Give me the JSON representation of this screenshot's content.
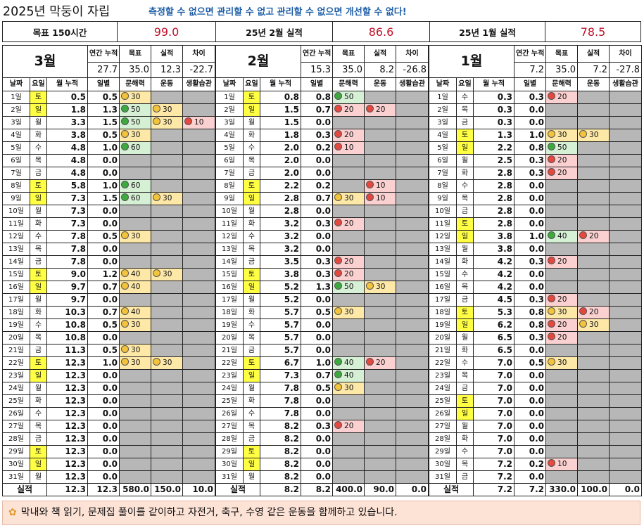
{
  "title": "2025년 막둥이 자립",
  "slogan": "측정할 수 없으면 관리할 수 없고 관리할 수 없으면 개선할 수 없다!",
  "summary": {
    "goal_label": "목표 150시간",
    "goal_value": "99.0",
    "feb_label": "25년 2월 실적",
    "feb_value": "86.6",
    "jan_label": "25년 1월 실적",
    "jan_value": "78.5"
  },
  "headers": {
    "annual": "연간 누적",
    "goal": "목표",
    "actual": "실적",
    "diff": "차이",
    "date": "날짜",
    "weekday": "요일",
    "month_cum": "월 누적",
    "daily": "일별",
    "literacy": "문해력",
    "exercise": "운동",
    "habit": "생활습관",
    "total_label": "실적"
  },
  "months": [
    {
      "name": "3월",
      "annual": "27.7",
      "goal": "35.0",
      "actual": "12.3",
      "diff": "-22.7",
      "days": [
        [
          "1일",
          "토",
          "0.5",
          "0.5",
          "30",
          "",
          ""
        ],
        [
          "2일",
          "일",
          "1.8",
          "1.3",
          "50",
          "30",
          ""
        ],
        [
          "3일",
          "월",
          "3.3",
          "1.5",
          "50",
          "30",
          "10"
        ],
        [
          "4일",
          "화",
          "3.8",
          "0.5",
          "30",
          "",
          ""
        ],
        [
          "5일",
          "수",
          "4.8",
          "1.0",
          "60",
          "",
          ""
        ],
        [
          "6일",
          "목",
          "4.8",
          "0.0",
          "",
          "",
          ""
        ],
        [
          "7일",
          "금",
          "4.8",
          "0.0",
          "",
          "",
          ""
        ],
        [
          "8일",
          "토",
          "5.8",
          "1.0",
          "60",
          "",
          ""
        ],
        [
          "9일",
          "일",
          "7.3",
          "1.5",
          "60",
          "30",
          ""
        ],
        [
          "10일",
          "월",
          "7.3",
          "0.0",
          "",
          "",
          ""
        ],
        [
          "11일",
          "화",
          "7.3",
          "0.0",
          "",
          "",
          ""
        ],
        [
          "12일",
          "수",
          "7.8",
          "0.5",
          "30",
          "",
          ""
        ],
        [
          "13일",
          "목",
          "7.8",
          "0.0",
          "",
          "",
          ""
        ],
        [
          "14일",
          "금",
          "7.8",
          "0.0",
          "",
          "",
          ""
        ],
        [
          "15일",
          "토",
          "9.0",
          "1.2",
          "40",
          "30",
          ""
        ],
        [
          "16일",
          "일",
          "9.7",
          "0.7",
          "40",
          "",
          ""
        ],
        [
          "17일",
          "월",
          "9.7",
          "0.0",
          "",
          "",
          ""
        ],
        [
          "18일",
          "화",
          "10.3",
          "0.7",
          "40",
          "",
          ""
        ],
        [
          "19일",
          "수",
          "10.8",
          "0.5",
          "30",
          "",
          ""
        ],
        [
          "20일",
          "목",
          "10.8",
          "0.0",
          "",
          "",
          ""
        ],
        [
          "21일",
          "금",
          "11.3",
          "0.5",
          "30",
          "",
          ""
        ],
        [
          "22일",
          "토",
          "12.3",
          "1.0",
          "30",
          "30",
          ""
        ],
        [
          "23일",
          "일",
          "12.3",
          "0.0",
          "",
          "",
          ""
        ],
        [
          "24일",
          "월",
          "12.3",
          "0.0",
          "",
          "",
          ""
        ],
        [
          "25일",
          "화",
          "12.3",
          "0.0",
          "",
          "",
          ""
        ],
        [
          "26일",
          "수",
          "12.3",
          "0.0",
          "",
          "",
          ""
        ],
        [
          "27일",
          "목",
          "12.3",
          "0.0",
          "",
          "",
          ""
        ],
        [
          "28일",
          "금",
          "12.3",
          "0.0",
          "",
          "",
          ""
        ],
        [
          "29일",
          "토",
          "12.3",
          "0.0",
          "",
          "",
          ""
        ],
        [
          "30일",
          "일",
          "12.3",
          "0.0",
          "",
          "",
          ""
        ],
        [
          "31일",
          "월",
          "12.3",
          "0.0",
          "",
          "",
          ""
        ]
      ],
      "total": {
        "cum": "12.3",
        "daily": "12.3",
        "literacy": "580.0",
        "exercise": "150.0",
        "habit": "10.0"
      },
      "colors": [
        [
          "y",
          "",
          ""
        ],
        [
          "g",
          "y",
          ""
        ],
        [
          "g",
          "y",
          "r"
        ],
        [
          "y",
          "",
          ""
        ],
        [
          "g",
          "",
          ""
        ],
        [
          "",
          "",
          ""
        ],
        [
          "",
          "",
          ""
        ],
        [
          "g",
          "",
          ""
        ],
        [
          "g",
          "y",
          ""
        ],
        [
          "",
          "",
          ""
        ],
        [
          "",
          "",
          ""
        ],
        [
          "y",
          "",
          ""
        ],
        [
          "",
          "",
          ""
        ],
        [
          "",
          "",
          ""
        ],
        [
          "y",
          "y",
          ""
        ],
        [
          "y",
          "",
          ""
        ],
        [
          "",
          "",
          ""
        ],
        [
          "y",
          "",
          ""
        ],
        [
          "y",
          "",
          ""
        ],
        [
          "",
          "",
          ""
        ],
        [
          "y",
          "",
          ""
        ],
        [
          "y",
          "y",
          ""
        ],
        [
          "",
          "",
          ""
        ],
        [
          "",
          "",
          ""
        ],
        [
          "",
          "",
          ""
        ],
        [
          "",
          "",
          ""
        ],
        [
          "",
          "",
          ""
        ],
        [
          "",
          "",
          ""
        ],
        [
          "",
          "",
          ""
        ],
        [
          "",
          "",
          ""
        ],
        [
          "",
          "",
          ""
        ]
      ]
    },
    {
      "name": "2월",
      "annual": "15.3",
      "goal": "35.0",
      "actual": "8.2",
      "diff": "-26.8",
      "days": [
        [
          "1일",
          "토",
          "0.8",
          "0.8",
          "50",
          "",
          ""
        ],
        [
          "2일",
          "일",
          "1.5",
          "0.7",
          "20",
          "20",
          ""
        ],
        [
          "3일",
          "월",
          "1.5",
          "0.0",
          "",
          "",
          ""
        ],
        [
          "4일",
          "화",
          "1.8",
          "0.3",
          "20",
          "",
          ""
        ],
        [
          "5일",
          "수",
          "2.0",
          "0.2",
          "10",
          "",
          ""
        ],
        [
          "6일",
          "목",
          "2.0",
          "0.0",
          "",
          "",
          ""
        ],
        [
          "7일",
          "금",
          "2.0",
          "0.0",
          "",
          "",
          ""
        ],
        [
          "8일",
          "토",
          "2.2",
          "0.2",
          "",
          "10",
          ""
        ],
        [
          "9일",
          "일",
          "2.8",
          "0.7",
          "30",
          "10",
          ""
        ],
        [
          "10일",
          "월",
          "2.8",
          "0.0",
          "",
          "",
          ""
        ],
        [
          "11일",
          "화",
          "3.2",
          "0.3",
          "20",
          "",
          ""
        ],
        [
          "12일",
          "수",
          "3.2",
          "0.0",
          "",
          "",
          ""
        ],
        [
          "13일",
          "목",
          "3.2",
          "0.0",
          "",
          "",
          ""
        ],
        [
          "14일",
          "금",
          "3.5",
          "0.3",
          "20",
          "",
          ""
        ],
        [
          "15일",
          "토",
          "3.8",
          "0.3",
          "20",
          "",
          ""
        ],
        [
          "16일",
          "일",
          "5.2",
          "1.3",
          "50",
          "30",
          ""
        ],
        [
          "17일",
          "월",
          "5.2",
          "0.0",
          "",
          "",
          ""
        ],
        [
          "18일",
          "화",
          "5.7",
          "0.5",
          "30",
          "",
          ""
        ],
        [
          "19일",
          "수",
          "5.7",
          "0.0",
          "",
          "",
          ""
        ],
        [
          "20일",
          "목",
          "5.7",
          "0.0",
          "",
          "",
          ""
        ],
        [
          "21일",
          "금",
          "5.7",
          "0.0",
          "",
          "",
          ""
        ],
        [
          "22일",
          "토",
          "6.7",
          "1.0",
          "40",
          "20",
          ""
        ],
        [
          "23일",
          "일",
          "7.3",
          "0.7",
          "40",
          "",
          ""
        ],
        [
          "24일",
          "월",
          "7.8",
          "0.5",
          "30",
          "",
          ""
        ],
        [
          "25일",
          "화",
          "7.8",
          "0.0",
          "",
          "",
          ""
        ],
        [
          "26일",
          "수",
          "7.8",
          "0.0",
          "",
          "",
          ""
        ],
        [
          "27일",
          "목",
          "8.2",
          "0.3",
          "20",
          "",
          ""
        ],
        [
          "28일",
          "금",
          "8.2",
          "0.0",
          "",
          "",
          ""
        ],
        [
          "29일",
          "토",
          "8.2",
          "0.0",
          "",
          "",
          ""
        ],
        [
          "30일",
          "일",
          "8.2",
          "0.0",
          "",
          "",
          ""
        ],
        [
          "31일",
          "월",
          "8.2",
          "0.0",
          "",
          "",
          ""
        ]
      ],
      "total": {
        "cum": "8.2",
        "daily": "8.2",
        "literacy": "400.0",
        "exercise": "90.0",
        "habit": "0.0"
      },
      "colors": [
        [
          "g",
          "",
          ""
        ],
        [
          "r",
          "r",
          ""
        ],
        [
          "",
          "",
          ""
        ],
        [
          "r",
          "",
          ""
        ],
        [
          "r",
          "",
          ""
        ],
        [
          "",
          "",
          ""
        ],
        [
          "",
          "",
          ""
        ],
        [
          "",
          "r",
          ""
        ],
        [
          "y",
          "r",
          ""
        ],
        [
          "",
          "",
          ""
        ],
        [
          "r",
          "",
          ""
        ],
        [
          "",
          "",
          ""
        ],
        [
          "",
          "",
          ""
        ],
        [
          "r",
          "",
          ""
        ],
        [
          "r",
          "",
          ""
        ],
        [
          "g",
          "y",
          ""
        ],
        [
          "",
          "",
          ""
        ],
        [
          "y",
          "",
          ""
        ],
        [
          "",
          "",
          ""
        ],
        [
          "",
          "",
          ""
        ],
        [
          "",
          "",
          ""
        ],
        [
          "g",
          "r",
          ""
        ],
        [
          "g",
          "",
          ""
        ],
        [
          "y",
          "",
          ""
        ],
        [
          "",
          "",
          ""
        ],
        [
          "",
          "",
          ""
        ],
        [
          "r",
          "",
          ""
        ],
        [
          "",
          "",
          ""
        ],
        [
          "",
          "",
          ""
        ],
        [
          "",
          "",
          ""
        ],
        [
          "",
          "",
          ""
        ]
      ]
    },
    {
      "name": "1월",
      "annual": "7.2",
      "goal": "35.0",
      "actual": "7.2",
      "diff": "-27.8",
      "days": [
        [
          "1일",
          "수",
          "0.3",
          "0.3",
          "20",
          "",
          ""
        ],
        [
          "2일",
          "목",
          "0.3",
          "0.0",
          "",
          "",
          ""
        ],
        [
          "3일",
          "금",
          "0.3",
          "0.0",
          "",
          "",
          ""
        ],
        [
          "4일",
          "토",
          "1.3",
          "1.0",
          "30",
          "30",
          ""
        ],
        [
          "5일",
          "일",
          "2.2",
          "0.8",
          "50",
          "",
          ""
        ],
        [
          "6일",
          "월",
          "2.5",
          "0.3",
          "20",
          "",
          ""
        ],
        [
          "7일",
          "화",
          "2.8",
          "0.3",
          "20",
          "",
          ""
        ],
        [
          "8일",
          "수",
          "2.8",
          "0.0",
          "",
          "",
          ""
        ],
        [
          "9일",
          "목",
          "2.8",
          "0.0",
          "",
          "",
          ""
        ],
        [
          "10일",
          "금",
          "2.8",
          "0.0",
          "",
          "",
          ""
        ],
        [
          "11일",
          "토",
          "2.8",
          "0.0",
          "",
          "",
          ""
        ],
        [
          "12일",
          "일",
          "3.8",
          "1.0",
          "40",
          "20",
          ""
        ],
        [
          "13일",
          "월",
          "3.8",
          "0.0",
          "",
          "",
          ""
        ],
        [
          "14일",
          "화",
          "4.2",
          "0.3",
          "20",
          "",
          ""
        ],
        [
          "15일",
          "수",
          "4.2",
          "0.0",
          "",
          "",
          ""
        ],
        [
          "16일",
          "목",
          "4.2",
          "0.0",
          "",
          "",
          ""
        ],
        [
          "17일",
          "금",
          "4.5",
          "0.3",
          "20",
          "",
          ""
        ],
        [
          "18일",
          "토",
          "5.3",
          "0.8",
          "30",
          "20",
          ""
        ],
        [
          "19일",
          "일",
          "6.2",
          "0.8",
          "20",
          "30",
          ""
        ],
        [
          "20일",
          "월",
          "6.5",
          "0.3",
          "20",
          "",
          ""
        ],
        [
          "21일",
          "화",
          "6.5",
          "0.0",
          "",
          "",
          ""
        ],
        [
          "22일",
          "수",
          "7.0",
          "0.5",
          "30",
          "",
          ""
        ],
        [
          "23일",
          "목",
          "7.0",
          "0.0",
          "",
          "",
          ""
        ],
        [
          "24일",
          "금",
          "7.0",
          "0.0",
          "",
          "",
          ""
        ],
        [
          "25일",
          "토",
          "7.0",
          "0.0",
          "",
          "",
          ""
        ],
        [
          "26일",
          "일",
          "7.0",
          "0.0",
          "",
          "",
          ""
        ],
        [
          "27일",
          "월",
          "7.0",
          "0.0",
          "",
          "",
          ""
        ],
        [
          "28일",
          "화",
          "7.0",
          "0.0",
          "",
          "",
          ""
        ],
        [
          "29일",
          "수",
          "7.0",
          "0.0",
          "",
          "",
          ""
        ],
        [
          "30일",
          "목",
          "7.2",
          "0.2",
          "10",
          "",
          ""
        ],
        [
          "31일",
          "금",
          "7.2",
          "0.0",
          "",
          "",
          ""
        ]
      ],
      "total": {
        "cum": "7.2",
        "daily": "7.2",
        "literacy": "330.0",
        "exercise": "100.0",
        "habit": "0.0"
      },
      "colors": [
        [
          "r",
          "",
          ""
        ],
        [
          "",
          "",
          ""
        ],
        [
          "",
          "",
          ""
        ],
        [
          "y",
          "y",
          ""
        ],
        [
          "g",
          "",
          ""
        ],
        [
          "r",
          "",
          ""
        ],
        [
          "r",
          "",
          ""
        ],
        [
          "",
          "",
          ""
        ],
        [
          "",
          "",
          ""
        ],
        [
          "",
          "",
          ""
        ],
        [
          "",
          "",
          ""
        ],
        [
          "g",
          "r",
          ""
        ],
        [
          "",
          "",
          ""
        ],
        [
          "r",
          "",
          ""
        ],
        [
          "",
          "",
          ""
        ],
        [
          "",
          "",
          ""
        ],
        [
          "r",
          "",
          ""
        ],
        [
          "y",
          "r",
          ""
        ],
        [
          "r",
          "y",
          ""
        ],
        [
          "r",
          "",
          ""
        ],
        [
          "",
          "",
          ""
        ],
        [
          "y",
          "",
          ""
        ],
        [
          "",
          "",
          ""
        ],
        [
          "",
          "",
          ""
        ],
        [
          "",
          "",
          ""
        ],
        [
          "",
          "",
          ""
        ],
        [
          "",
          "",
          ""
        ],
        [
          "",
          "",
          ""
        ],
        [
          "",
          "",
          ""
        ],
        [
          "r",
          "",
          ""
        ],
        [
          "",
          "",
          ""
        ]
      ]
    }
  ],
  "weekend_days": [
    "토",
    "일"
  ],
  "legend_colors": {
    "green": "#3daa3d",
    "yellow": "#f3c33b",
    "red": "#e5483e",
    "gray": "#b7b7b7",
    "weekend": "#ffff44"
  },
  "footer": {
    "icon": "sparkle-icon",
    "text": "막내와 책 읽기, 문제집 풀이를 같이하고 자전거, 축구, 수영 같은 운동을 함께하고 있습니다."
  }
}
